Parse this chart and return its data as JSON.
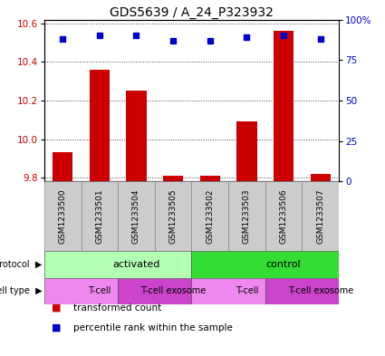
{
  "title": "GDS5639 / A_24_P323932",
  "samples": [
    "GSM1233500",
    "GSM1233501",
    "GSM1233504",
    "GSM1233505",
    "GSM1233502",
    "GSM1233503",
    "GSM1233506",
    "GSM1233507"
  ],
  "transformed_counts": [
    9.93,
    10.36,
    10.25,
    9.81,
    9.81,
    10.09,
    10.56,
    9.82
  ],
  "percentile_ranks": [
    88,
    90,
    90,
    87,
    87,
    89,
    90,
    88
  ],
  "ylim_left": [
    9.78,
    10.62
  ],
  "ylim_right": [
    0,
    100
  ],
  "yticks_left": [
    9.8,
    10.0,
    10.2,
    10.4,
    10.6
  ],
  "yticks_right": [
    0,
    25,
    50,
    75,
    100
  ],
  "bar_color": "#cc0000",
  "dot_color": "#0000cc",
  "bar_bottom": 9.78,
  "protocol_groups": [
    {
      "label": "activated",
      "start": 0,
      "end": 4,
      "color": "#b3ffb3"
    },
    {
      "label": "control",
      "start": 4,
      "end": 8,
      "color": "#33dd33"
    }
  ],
  "celltype_groups": [
    {
      "label": "T-cell",
      "start": 0,
      "end": 2,
      "color": "#ee88ee"
    },
    {
      "label": "T-cell exosome",
      "start": 2,
      "end": 4,
      "color": "#cc44cc"
    },
    {
      "label": "T-cell",
      "start": 4,
      "end": 6,
      "color": "#ee88ee"
    },
    {
      "label": "T-cell exosome",
      "start": 6,
      "end": 8,
      "color": "#cc44cc"
    }
  ],
  "legend_items": [
    {
      "label": "transformed count",
      "color": "#cc0000"
    },
    {
      "label": "percentile rank within the sample",
      "color": "#0000cc"
    }
  ],
  "title_fontsize": 10,
  "tick_fontsize": 7.5,
  "sample_fontsize": 6.5,
  "annot_fontsize": 8,
  "legend_fontsize": 7.5
}
